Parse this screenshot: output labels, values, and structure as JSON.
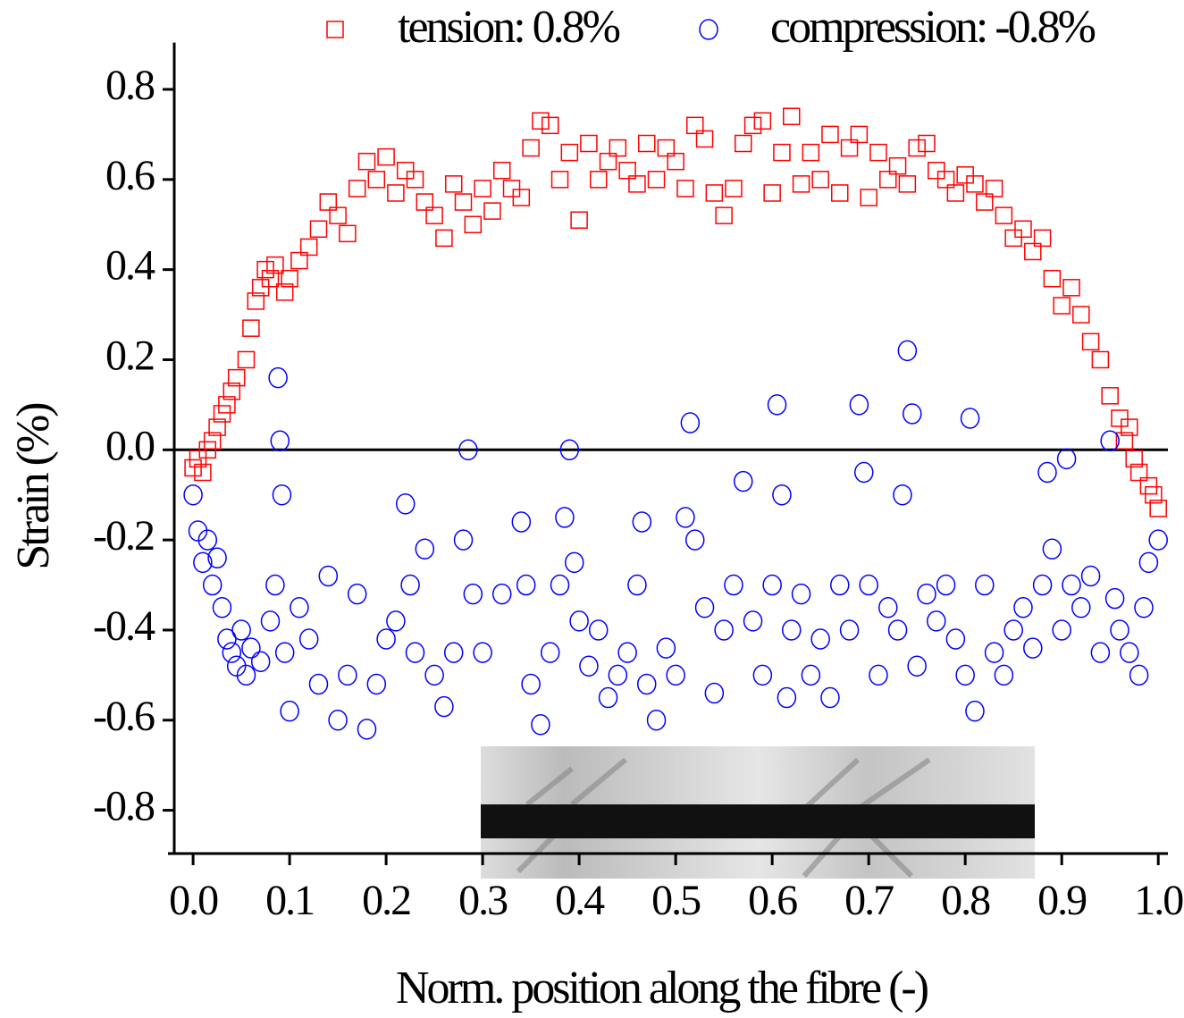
{
  "chart_data": {
    "type": "scatter",
    "xlabel": "Norm. position along the fibre (-)",
    "ylabel": "Strain (%)",
    "xlim": [
      -0.026,
      1.01
    ],
    "ylim": [
      -0.9,
      0.9
    ],
    "xticks": [
      {
        "value": 0,
        "label": "0.0"
      },
      0.1,
      0.2,
      0.3,
      0.4,
      0.5,
      0.6,
      0.7,
      0.8,
      0.9,
      {
        "value": 1,
        "label": "1.0"
      }
    ],
    "yticks": [
      -0.8,
      -0.6,
      -0.4,
      -0.2,
      {
        "value": 0,
        "label": "0.0"
      },
      0.2,
      0.4,
      0.6,
      0.8
    ],
    "hlines": [
      0
    ],
    "series": [
      {
        "name": "tension: 0.8%",
        "color": "#ff0000",
        "marker": "square",
        "x": [
          0,
          0.005,
          0.01,
          0.015,
          0.02,
          0.025,
          0.03,
          0.035,
          0.04,
          0.045,
          0.055,
          0.06,
          0.065,
          0.07,
          0.075,
          0.08,
          0.085,
          0.095,
          0.1,
          0.11,
          0.12,
          0.13,
          0.14,
          0.15,
          0.16,
          0.17,
          0.18,
          0.19,
          0.2,
          0.21,
          0.22,
          0.23,
          0.24,
          0.25,
          0.26,
          0.27,
          0.28,
          0.29,
          0.3,
          0.31,
          0.32,
          0.33,
          0.34,
          0.35,
          0.36,
          0.37,
          0.38,
          0.39,
          0.4,
          0.41,
          0.42,
          0.43,
          0.44,
          0.45,
          0.46,
          0.47,
          0.48,
          0.49,
          0.5,
          0.51,
          0.52,
          0.53,
          0.54,
          0.55,
          0.56,
          0.57,
          0.58,
          0.59,
          0.6,
          0.61,
          0.62,
          0.63,
          0.64,
          0.65,
          0.66,
          0.67,
          0.68,
          0.69,
          0.7,
          0.71,
          0.72,
          0.73,
          0.74,
          0.75,
          0.76,
          0.77,
          0.78,
          0.79,
          0.8,
          0.81,
          0.82,
          0.83,
          0.84,
          0.85,
          0.86,
          0.87,
          0.88,
          0.89,
          0.9,
          0.91,
          0.92,
          0.93,
          0.94,
          0.95,
          0.96,
          0.965,
          0.97,
          0.975,
          0.98,
          0.99,
          0.995,
          1
        ],
        "y": [
          -0.04,
          -0.02,
          -0.05,
          0,
          0.02,
          0.05,
          0.08,
          0.1,
          0.13,
          0.16,
          0.2,
          0.27,
          0.33,
          0.36,
          0.4,
          0.38,
          0.41,
          0.35,
          0.38,
          0.42,
          0.45,
          0.49,
          0.55,
          0.52,
          0.48,
          0.58,
          0.64,
          0.6,
          0.65,
          0.57,
          0.62,
          0.6,
          0.55,
          0.52,
          0.47,
          0.59,
          0.55,
          0.5,
          0.58,
          0.53,
          0.62,
          0.58,
          0.56,
          0.67,
          0.73,
          0.72,
          0.6,
          0.66,
          0.51,
          0.68,
          0.6,
          0.64,
          0.67,
          0.62,
          0.59,
          0.68,
          0.6,
          0.67,
          0.64,
          0.58,
          0.72,
          0.69,
          0.57,
          0.52,
          0.58,
          0.68,
          0.72,
          0.73,
          0.57,
          0.66,
          0.74,
          0.59,
          0.66,
          0.6,
          0.7,
          0.57,
          0.67,
          0.7,
          0.56,
          0.66,
          0.6,
          0.63,
          0.59,
          0.67,
          0.68,
          0.62,
          0.6,
          0.57,
          0.61,
          0.59,
          0.55,
          0.58,
          0.52,
          0.47,
          0.49,
          0.44,
          0.47,
          0.38,
          0.32,
          0.36,
          0.3,
          0.24,
          0.2,
          0.12,
          0.07,
          0.02,
          0.05,
          -0.02,
          -0.05,
          -0.08,
          -0.1,
          -0.13
        ]
      },
      {
        "name": "compression: -0.8%",
        "color": "#0000ff",
        "marker": "circle",
        "x": [
          0,
          0.005,
          0.01,
          0.015,
          0.02,
          0.025,
          0.03,
          0.035,
          0.04,
          0.045,
          0.05,
          0.055,
          0.06,
          0.07,
          0.08,
          0.085,
          0.088,
          0.09,
          0.092,
          0.095,
          0.1,
          0.11,
          0.12,
          0.13,
          0.14,
          0.15,
          0.16,
          0.17,
          0.18,
          0.19,
          0.2,
          0.21,
          0.22,
          0.225,
          0.23,
          0.24,
          0.25,
          0.26,
          0.27,
          0.28,
          0.285,
          0.29,
          0.3,
          0.32,
          0.34,
          0.345,
          0.35,
          0.36,
          0.37,
          0.38,
          0.385,
          0.39,
          0.395,
          0.4,
          0.41,
          0.42,
          0.43,
          0.44,
          0.45,
          0.46,
          0.465,
          0.47,
          0.48,
          0.49,
          0.5,
          0.51,
          0.515,
          0.52,
          0.53,
          0.54,
          0.55,
          0.56,
          0.57,
          0.58,
          0.59,
          0.6,
          0.605,
          0.61,
          0.615,
          0.62,
          0.63,
          0.64,
          0.65,
          0.66,
          0.67,
          0.68,
          0.69,
          0.695,
          0.7,
          0.71,
          0.72,
          0.73,
          0.735,
          0.74,
          0.745,
          0.75,
          0.76,
          0.77,
          0.78,
          0.79,
          0.8,
          0.805,
          0.81,
          0.82,
          0.83,
          0.84,
          0.85,
          0.86,
          0.87,
          0.88,
          0.885,
          0.89,
          0.9,
          0.905,
          0.91,
          0.92,
          0.93,
          0.94,
          0.95,
          0.955,
          0.96,
          0.97,
          0.98,
          0.985,
          0.99,
          1
        ],
        "y": [
          -0.1,
          -0.18,
          -0.25,
          -0.2,
          -0.3,
          -0.24,
          -0.35,
          -0.42,
          -0.45,
          -0.48,
          -0.4,
          -0.5,
          -0.44,
          -0.47,
          -0.38,
          -0.3,
          0.16,
          0.02,
          -0.1,
          -0.45,
          -0.58,
          -0.35,
          -0.42,
          -0.52,
          -0.28,
          -0.6,
          -0.5,
          -0.32,
          -0.62,
          -0.52,
          -0.42,
          -0.38,
          -0.12,
          -0.3,
          -0.45,
          -0.22,
          -0.5,
          -0.57,
          -0.45,
          -0.2,
          0,
          -0.32,
          -0.45,
          -0.32,
          -0.16,
          -0.3,
          -0.52,
          -0.61,
          -0.45,
          -0.3,
          -0.15,
          0,
          -0.25,
          -0.38,
          -0.48,
          -0.4,
          -0.55,
          -0.5,
          -0.45,
          -0.3,
          -0.16,
          -0.52,
          -0.6,
          -0.44,
          -0.5,
          -0.15,
          0.06,
          -0.2,
          -0.35,
          -0.54,
          -0.4,
          -0.3,
          -0.07,
          -0.38,
          -0.5,
          -0.3,
          0.1,
          -0.1,
          -0.55,
          -0.4,
          -0.32,
          -0.5,
          -0.42,
          -0.55,
          -0.3,
          -0.4,
          0.1,
          -0.05,
          -0.3,
          -0.5,
          -0.35,
          -0.4,
          -0.1,
          0.22,
          0.08,
          -0.48,
          -0.32,
          -0.38,
          -0.3,
          -0.42,
          -0.5,
          0.07,
          -0.58,
          -0.3,
          -0.45,
          -0.5,
          -0.4,
          -0.35,
          -0.44,
          -0.3,
          -0.05,
          -0.22,
          -0.4,
          -0.02,
          -0.3,
          -0.35,
          -0.28,
          -0.45,
          0.02,
          -0.33,
          -0.4,
          -0.45,
          -0.5,
          -0.35,
          -0.25,
          -0.2
        ]
      }
    ]
  }
}
